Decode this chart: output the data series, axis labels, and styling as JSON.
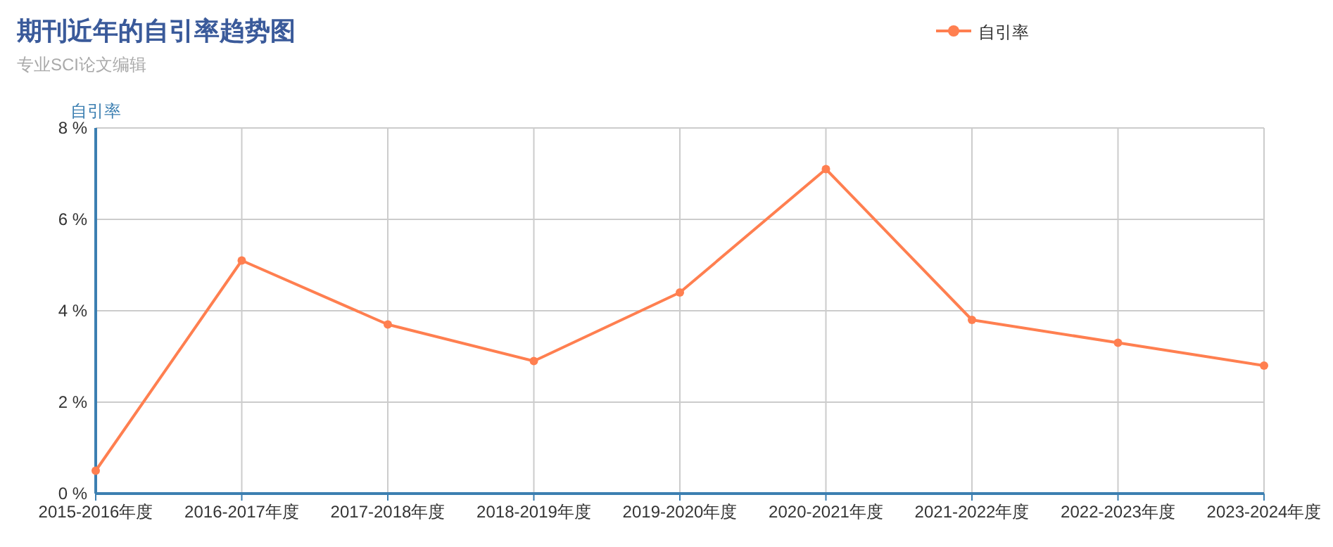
{
  "chart_data": {
    "type": "line",
    "title": "期刊近年的自引率趋势图",
    "subtitle": "专业SCI论文编辑",
    "ylabel": "自引率",
    "categories": [
      "2015-2016年度",
      "2016-2017年度",
      "2017-2018年度",
      "2018-2019年度",
      "2019-2020年度",
      "2020-2021年度",
      "2021-2022年度",
      "2022-2023年度",
      "2023-2024年度"
    ],
    "series": [
      {
        "name": "自引率",
        "color": "#ff7f50",
        "values": [
          0.5,
          5.1,
          3.7,
          2.9,
          4.4,
          7.1,
          3.8,
          3.3,
          2.8
        ]
      }
    ],
    "ylim": [
      0,
      8
    ],
    "yticks": [
      {
        "value": 0,
        "label": "0 %"
      },
      {
        "value": 2,
        "label": "2 %"
      },
      {
        "value": 4,
        "label": "4 %"
      },
      {
        "value": 6,
        "label": "6 %"
      },
      {
        "value": 8,
        "label": "8 %"
      }
    ],
    "grid": true,
    "legend": "top right",
    "marker": "circle",
    "line_style": "solid"
  }
}
